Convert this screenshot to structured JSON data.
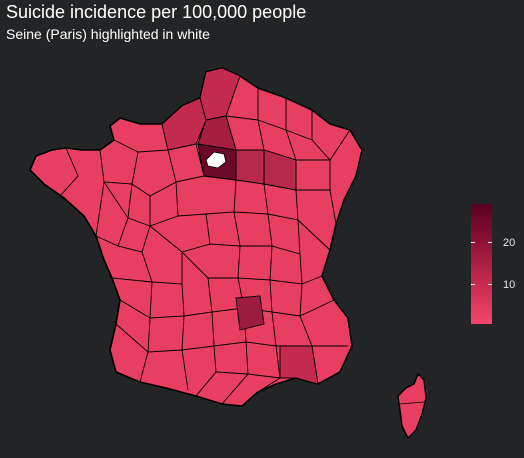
{
  "title": "Suicide incidence per 100,000 people",
  "subtitle": "Seine (Paris) highlighted in white",
  "legend": {
    "labels": [
      "20",
      "10"
    ],
    "range": [
      0,
      30
    ],
    "colors": {
      "low": "#f4466a",
      "mid": "#c4294f",
      "high": "#5a0020"
    }
  },
  "highlight": {
    "region": "Seine (Paris)",
    "color": "#ffffff"
  },
  "map_colors": {
    "background": "#222426",
    "border": "#000000",
    "base": "#e83e62",
    "medium": "#d23359",
    "dark": "#b8284d",
    "darkest": "#6a0a28"
  }
}
